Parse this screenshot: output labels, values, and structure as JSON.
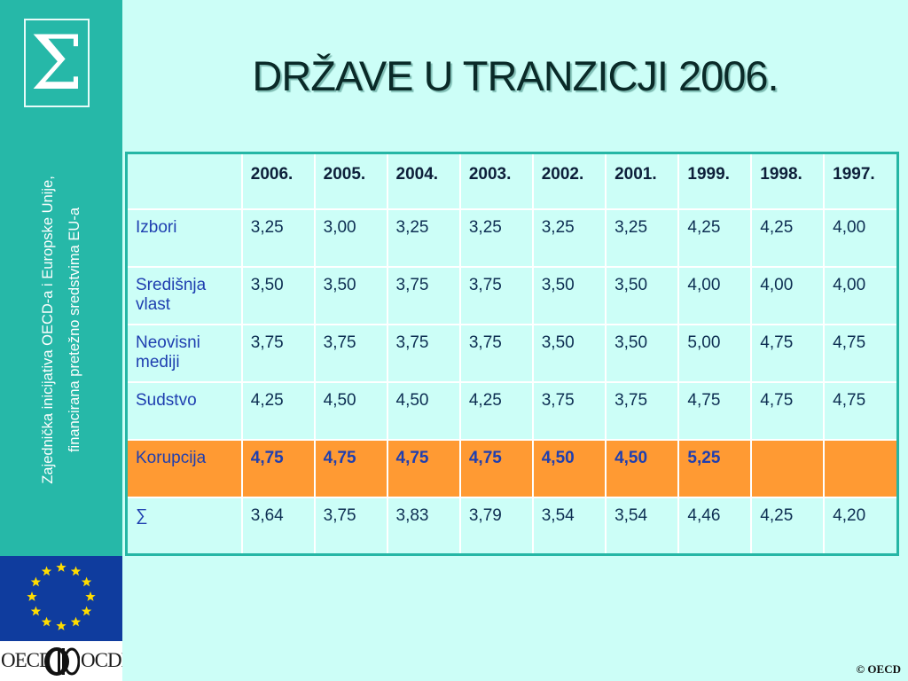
{
  "title": "DRŽAVE U TRANZICJI 2006.",
  "sidebar": {
    "logo_symbol": "Σ",
    "vertical_text_line1": "Zajednička inicijativa OECD-a i Europske Unije,",
    "vertical_text_line2": "financirana pretežno sredstvima EU-a"
  },
  "footer": {
    "oecd_left": "OECD",
    "oecd_right": "OCDE",
    "copyright": "© OECD"
  },
  "colors": {
    "background": "#ccfef7",
    "sidebar": "#26b8a8",
    "highlight_row": "#ff9a33",
    "eu_blue": "#0f3c9e",
    "eu_star": "#ffdd00"
  },
  "table": {
    "columns": [
      "",
      "2006.",
      "2005.",
      "2004.",
      "2003.",
      "2002.",
      "2001.",
      "1999.",
      "1998.",
      "1997."
    ],
    "rows": [
      [
        "Izbori",
        "3,25",
        "3,00",
        "3,25",
        "3,25",
        "3,25",
        "3,25",
        "4,25",
        "4,25",
        "4,00"
      ],
      [
        "Središnja vlast",
        "3,50",
        "3,50",
        "3,75",
        "3,75",
        "3,50",
        "3,50",
        "4,00",
        "4,00",
        "4,00"
      ],
      [
        "Neovisni mediji",
        "3,75",
        "3,75",
        "3,75",
        "3,75",
        "3,50",
        "3,50",
        "5,00",
        "4,75",
        "4,75"
      ],
      [
        "Sudstvo",
        "4,25",
        "4,50",
        "4,50",
        "4,25",
        "3,75",
        "3,75",
        "4,75",
        "4,75",
        "4,75"
      ],
      [
        "Korupcija",
        "4,75",
        "4,75",
        "4,75",
        "4,75",
        "4,50",
        "4,50",
        "5,25",
        "",
        ""
      ],
      [
        "∑",
        "3,64",
        "3,75",
        "3,83",
        "3,79",
        "3,54",
        "3,54",
        "4,46",
        "4,25",
        "4,20"
      ]
    ]
  }
}
